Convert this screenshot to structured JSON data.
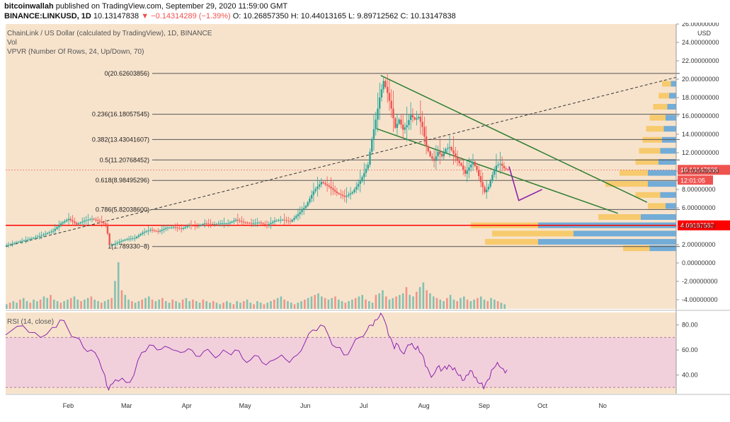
{
  "header": {
    "author": "bitcoinwallah",
    "published": " published on TradingView.com, September 29, 2020 11:59:00 GMT",
    "symbol": "BINANCE:LINKUSD, 1D",
    "last": "10.13147838",
    "change": "▼ −0.14314289 (−1.39%)",
    "ohlc": "O: 10.26857350  H: 10.44013165  L: 9.89712562  C: 10.13147838"
  },
  "legend": {
    "title": "ChainLink / US Dollar (calculated by TradingView), 1D, BINANCE",
    "vol": "Vol",
    "vpvr": "VPVR (Number Of Rows, 24, Up/Down, 70)",
    "rsi": "RSI (14, close)"
  },
  "colors": {
    "background": "#f7e3cc",
    "rsi_band": "#f1d0dc",
    "up": "#26a69a",
    "down": "#ef5350",
    "rsi_line": "#8e24aa",
    "support": "#ff0000",
    "channel": "#2e7d32",
    "vp_up": "#5aa2d8",
    "vp_down": "#f7c65c"
  },
  "chart_data": {
    "type": "candlestick",
    "currency": "USD",
    "ylim": [
      -5,
      26
    ],
    "price_ticks": [
      "26.00000000",
      "24.00000000",
      "22.00000000",
      "20.00000000",
      "18.00000000",
      "16.00000000",
      "14.00000000",
      "12.00000000",
      "10.00000000",
      "8.00000000",
      "6.00000000",
      "4.00000000",
      "2.00000000",
      "0.00000000",
      "-2.00000000",
      "-4.00000000"
    ],
    "price_tick_values": [
      26,
      24,
      22,
      20,
      18,
      16,
      14,
      12,
      10,
      8,
      6,
      4,
      2,
      0,
      -2,
      -4
    ],
    "x_labels": [
      "Feb",
      "Mar",
      "Apr",
      "May",
      "Jun",
      "Jul",
      "Aug",
      "Sep",
      "Oct",
      "No"
    ],
    "fib_levels": [
      {
        "label": "0(20.62603856)",
        "value": 20.62603856
      },
      {
        "label": "0.236(16.18057545)",
        "value": 16.18057545
      },
      {
        "label": "0.382(13.43041607)",
        "value": 13.43041607
      },
      {
        "label": "0.5(11.20768452)",
        "value": 11.20768452
      },
      {
        "label": "0.618(8.98495296)",
        "value": 8.98495296
      },
      {
        "label": "0.786(5.82038600)",
        "value": 5.820386
      },
      {
        "label": "1(1.789330−8)",
        "value": 1.78933
      }
    ],
    "support_level": {
      "label": "4.09187587",
      "value": 4.09187587
    },
    "last_price": {
      "label": "10.13147838",
      "value": 10.13147838,
      "countdown": "12:01:05"
    },
    "price_path": [
      [
        0,
        1.9
      ],
      [
        6,
        2.3
      ],
      [
        12,
        2.6
      ],
      [
        18,
        3.0
      ],
      [
        24,
        3.5
      ],
      [
        28,
        4.3
      ],
      [
        32,
        4.8
      ],
      [
        36,
        4.2
      ],
      [
        40,
        4.6
      ],
      [
        44,
        4.8
      ],
      [
        48,
        4.5
      ],
      [
        51,
        4.2
      ],
      [
        52,
        3.2
      ],
      [
        53,
        2.0
      ],
      [
        55,
        2.0
      ],
      [
        58,
        2.3
      ],
      [
        62,
        2.6
      ],
      [
        66,
        2.7
      ],
      [
        70,
        3.3
      ],
      [
        74,
        3.6
      ],
      [
        78,
        3.4
      ],
      [
        82,
        3.8
      ],
      [
        86,
        3.9
      ],
      [
        90,
        3.7
      ],
      [
        94,
        4.1
      ],
      [
        98,
        4.0
      ],
      [
        102,
        4.3
      ],
      [
        106,
        4.2
      ],
      [
        110,
        4.3
      ],
      [
        114,
        4.3
      ],
      [
        118,
        4.7
      ],
      [
        122,
        4.4
      ],
      [
        126,
        4.3
      ],
      [
        130,
        4.4
      ],
      [
        134,
        4.1
      ],
      [
        138,
        4.6
      ],
      [
        142,
        4.7
      ],
      [
        146,
        4.5
      ],
      [
        150,
        5.3
      ],
      [
        154,
        6.2
      ],
      [
        158,
        7.8
      ],
      [
        162,
        8.8
      ],
      [
        166,
        8.3
      ],
      [
        170,
        7.6
      ],
      [
        174,
        7.2
      ],
      [
        178,
        7.7
      ],
      [
        182,
        8.9
      ],
      [
        186,
        10.7
      ],
      [
        188,
        13.5
      ],
      [
        190,
        15.6
      ],
      [
        192,
        18.0
      ],
      [
        194,
        19.8
      ],
      [
        196,
        18.5
      ],
      [
        198,
        16.8
      ],
      [
        200,
        14.7
      ],
      [
        202,
        15.6
      ],
      [
        204,
        14.5
      ],
      [
        206,
        15.0
      ],
      [
        208,
        16.1
      ],
      [
        210,
        15.6
      ],
      [
        212,
        15.9
      ],
      [
        214,
        14.8
      ],
      [
        216,
        12.7
      ],
      [
        218,
        11.6
      ],
      [
        220,
        11.1
      ],
      [
        222,
        12.1
      ],
      [
        224,
        11.6
      ],
      [
        226,
        12.4
      ],
      [
        228,
        12.6
      ],
      [
        230,
        11.9
      ],
      [
        232,
        11.1
      ],
      [
        234,
        10.6
      ],
      [
        236,
        9.7
      ],
      [
        238,
        10.4
      ],
      [
        240,
        11.0
      ],
      [
        242,
        10.1
      ],
      [
        244,
        8.8
      ],
      [
        246,
        7.7
      ],
      [
        248,
        8.3
      ],
      [
        250,
        9.6
      ],
      [
        252,
        10.6
      ],
      [
        254,
        10.8
      ],
      [
        256,
        10.3
      ],
      [
        258,
        10.1
      ]
    ],
    "rsi": {
      "ylim": [
        25,
        90
      ],
      "ticks": [
        "80.00",
        "60.00",
        "40.00"
      ],
      "tick_values": [
        80,
        60,
        40
      ],
      "band": [
        30,
        70
      ],
      "path": [
        [
          0,
          72
        ],
        [
          6,
          79
        ],
        [
          12,
          74
        ],
        [
          18,
          70
        ],
        [
          24,
          78
        ],
        [
          28,
          84
        ],
        [
          32,
          77
        ],
        [
          36,
          70
        ],
        [
          40,
          62
        ],
        [
          44,
          60
        ],
        [
          48,
          52
        ],
        [
          51,
          40
        ],
        [
          53,
          28
        ],
        [
          55,
          33
        ],
        [
          58,
          35
        ],
        [
          62,
          34
        ],
        [
          66,
          40
        ],
        [
          70,
          58
        ],
        [
          74,
          64
        ],
        [
          78,
          60
        ],
        [
          82,
          63
        ],
        [
          86,
          60
        ],
        [
          90,
          58
        ],
        [
          94,
          61
        ],
        [
          98,
          55
        ],
        [
          102,
          59
        ],
        [
          106,
          57
        ],
        [
          110,
          56
        ],
        [
          114,
          58
        ],
        [
          118,
          60
        ],
        [
          122,
          53
        ],
        [
          126,
          52
        ],
        [
          130,
          55
        ],
        [
          134,
          48
        ],
        [
          138,
          52
        ],
        [
          142,
          56
        ],
        [
          146,
          50
        ],
        [
          150,
          56
        ],
        [
          154,
          66
        ],
        [
          158,
          76
        ],
        [
          162,
          80
        ],
        [
          166,
          72
        ],
        [
          170,
          62
        ],
        [
          174,
          56
        ],
        [
          178,
          62
        ],
        [
          182,
          70
        ],
        [
          186,
          76
        ],
        [
          188,
          80
        ],
        [
          190,
          84
        ],
        [
          192,
          86
        ],
        [
          194,
          87
        ],
        [
          196,
          79
        ],
        [
          198,
          70
        ],
        [
          200,
          61
        ],
        [
          202,
          64
        ],
        [
          204,
          58
        ],
        [
          206,
          61
        ],
        [
          208,
          64
        ],
        [
          210,
          62
        ],
        [
          212,
          63
        ],
        [
          214,
          57
        ],
        [
          216,
          47
        ],
        [
          218,
          42
        ],
        [
          220,
          40
        ],
        [
          222,
          46
        ],
        [
          224,
          43
        ],
        [
          226,
          47
        ],
        [
          228,
          48
        ],
        [
          230,
          44
        ],
        [
          232,
          42
        ],
        [
          234,
          40
        ],
        [
          236,
          36
        ],
        [
          238,
          40
        ],
        [
          240,
          43
        ],
        [
          242,
          38
        ],
        [
          244,
          33
        ],
        [
          246,
          29
        ],
        [
          248,
          36
        ],
        [
          250,
          44
        ],
        [
          252,
          47
        ],
        [
          254,
          47
        ],
        [
          256,
          45
        ],
        [
          258,
          44
        ]
      ]
    },
    "volume": [
      3,
      4,
      5,
      4,
      6,
      7,
      5,
      4,
      6,
      5,
      6,
      8,
      7,
      9,
      6,
      5,
      4,
      5,
      6,
      7,
      8,
      6,
      5,
      6,
      7,
      8,
      6,
      5,
      4,
      5,
      6,
      7,
      18,
      30,
      12,
      9,
      6,
      5,
      4,
      5,
      6,
      7,
      8,
      6,
      5,
      6,
      7,
      5,
      4,
      6,
      5,
      4,
      6,
      7,
      5,
      6,
      5,
      4,
      6,
      5,
      4,
      5,
      4,
      3,
      4,
      5,
      4,
      3,
      5,
      4,
      5,
      6,
      4,
      3,
      5,
      4,
      3,
      4,
      5,
      6,
      7,
      8,
      6,
      5,
      4,
      3,
      4,
      5,
      6,
      7,
      8,
      9,
      10,
      8,
      7,
      6,
      7,
      8,
      6,
      5,
      4,
      5,
      6,
      7,
      8,
      9,
      6,
      5,
      4,
      9,
      10,
      12,
      8,
      6,
      7,
      8,
      9,
      10,
      14,
      9,
      8,
      11,
      14,
      17,
      12,
      10,
      8,
      7,
      6,
      5,
      7,
      9,
      6,
      5,
      7,
      8,
      6,
      5,
      6,
      7,
      8,
      6,
      5,
      7,
      6,
      5,
      4,
      3
    ],
    "vpvr": [
      {
        "price": 19.5,
        "up": 0.05,
        "down": 0.03
      },
      {
        "price": 18.2,
        "up": 0.06,
        "down": 0.04
      },
      {
        "price": 17.0,
        "up": 0.08,
        "down": 0.05
      },
      {
        "price": 15.8,
        "up": 0.09,
        "down": 0.06
      },
      {
        "price": 14.6,
        "up": 0.1,
        "down": 0.07
      },
      {
        "price": 13.4,
        "up": 0.11,
        "down": 0.08
      },
      {
        "price": 12.2,
        "up": 0.12,
        "down": 0.09
      },
      {
        "price": 11.0,
        "up": 0.13,
        "down": 0.1
      },
      {
        "price": 9.8,
        "up": 0.16,
        "down": 0.16
      },
      {
        "price": 8.6,
        "up": 0.24,
        "down": 0.16
      },
      {
        "price": 7.4,
        "up": 0.14,
        "down": 0.09
      },
      {
        "price": 6.2,
        "up": 0.1,
        "down": 0.06
      },
      {
        "price": 5.0,
        "up": 0.24,
        "down": 0.2
      },
      {
        "price": 4.1,
        "up": 0.38,
        "down": 0.78
      },
      {
        "price": 3.2,
        "up": 0.46,
        "down": 0.58
      },
      {
        "price": 2.3,
        "up": 0.3,
        "down": 0.78
      },
      {
        "price": 1.6,
        "up": 0.15,
        "down": 0.15
      }
    ]
  }
}
